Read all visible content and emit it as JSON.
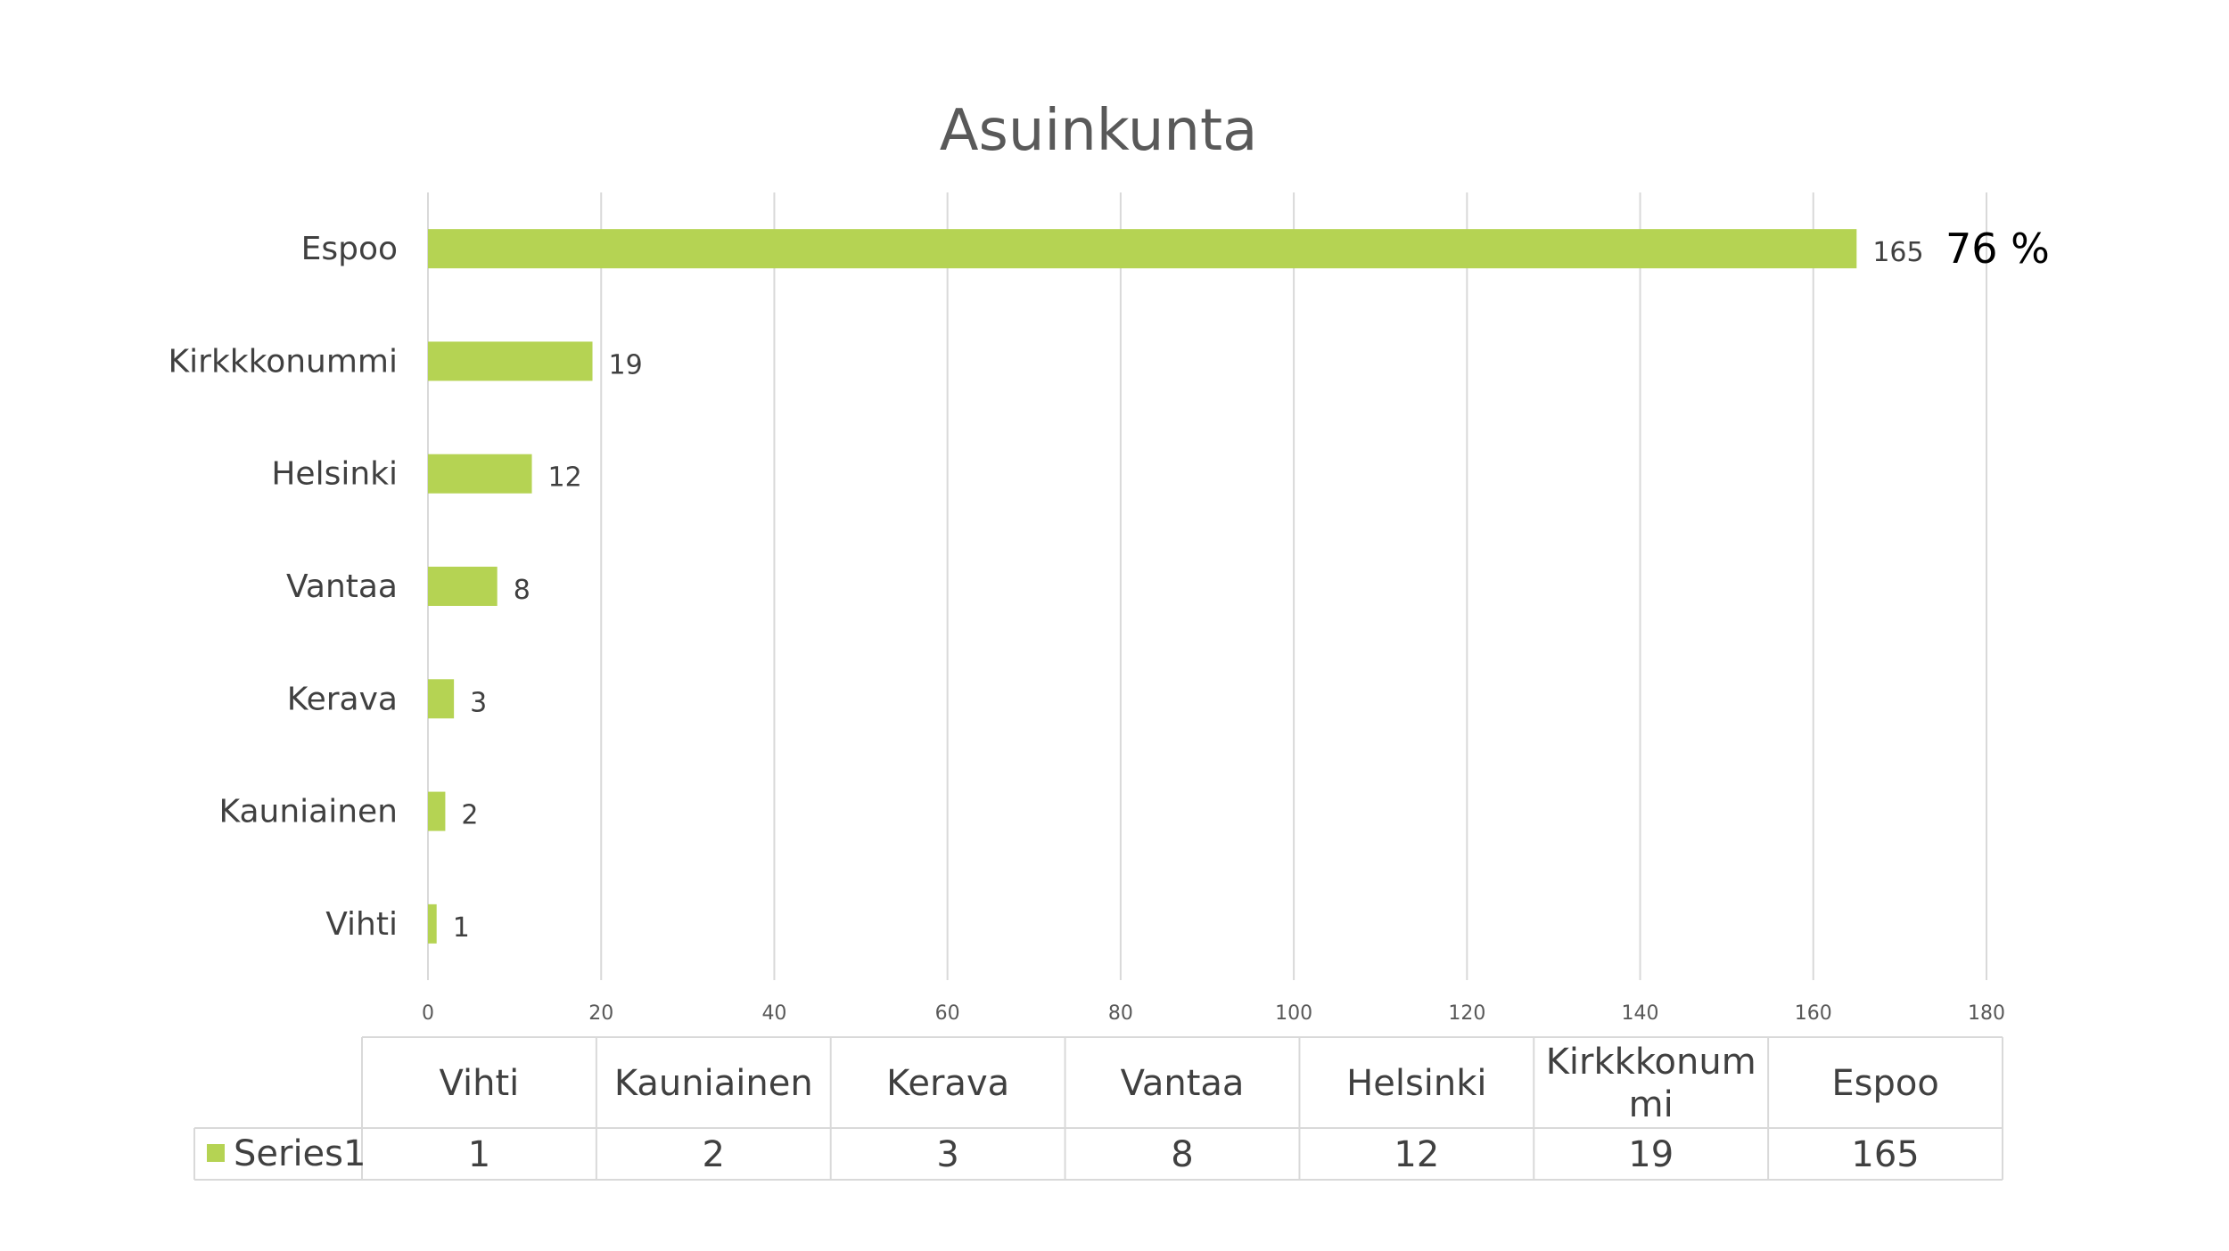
{
  "chart_data": {
    "type": "bar",
    "orientation": "horizontal",
    "title": "Asuinkunta",
    "categories": [
      "Vihti",
      "Kauniainen",
      "Kerava",
      "Vantaa",
      "Helsinki",
      "Kirkkkonummi",
      "Espoo"
    ],
    "table_headers": [
      [
        "Vihti"
      ],
      [
        "Kauniainen"
      ],
      [
        "Kerava"
      ],
      [
        "Vantaa"
      ],
      [
        "Helsinki"
      ],
      [
        "Kirkkkonum",
        "mi"
      ],
      [
        "Espoo"
      ]
    ],
    "series": [
      {
        "name": "Series1",
        "values": [
          1,
          2,
          3,
          8,
          12,
          19,
          165
        ],
        "color": "#b5d353"
      }
    ],
    "xlim": [
      0,
      180
    ],
    "xticks": [
      0,
      20,
      40,
      60,
      80,
      100,
      120,
      140,
      160,
      180
    ],
    "grid": true,
    "legend": "data-table",
    "annotation": {
      "text": "76 %",
      "category": "Espoo"
    },
    "colors": {
      "bar": "#b5d353",
      "grid": "#d9d9d9",
      "text": "#404040",
      "title": "#595959"
    }
  }
}
